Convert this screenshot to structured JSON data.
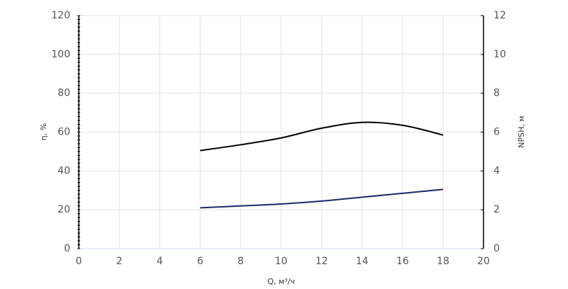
{
  "chart_data": {
    "type": "line",
    "x_label": "Q, м³/ч",
    "y_label": "η, %",
    "y2_label": "NPSH, м",
    "xlim": [
      0,
      20
    ],
    "xticks": [
      0,
      2,
      4,
      6,
      8,
      10,
      12,
      14,
      16,
      18,
      20
    ],
    "ylim": [
      0,
      120
    ],
    "yticks": [
      0,
      20,
      40,
      60,
      80,
      100,
      120
    ],
    "y2lim": [
      0,
      12
    ],
    "y2ticks": [
      0,
      2,
      4,
      6,
      8,
      10,
      12
    ],
    "grid": true,
    "series": [
      {
        "color": "#000000",
        "x": [
          6,
          8,
          10,
          12,
          14,
          16,
          18
        ],
        "values": [
          50.5,
          53.5,
          57,
          62,
          65,
          63.5,
          58.5
        ]
      },
      {
        "color": "#1b2a6b",
        "axis": "y2",
        "x": [
          6,
          8,
          10,
          12,
          14,
          16,
          18
        ],
        "values": [
          2.1,
          2.2,
          2.3,
          2.45,
          2.65,
          2.85,
          3.05
        ]
      }
    ]
  }
}
